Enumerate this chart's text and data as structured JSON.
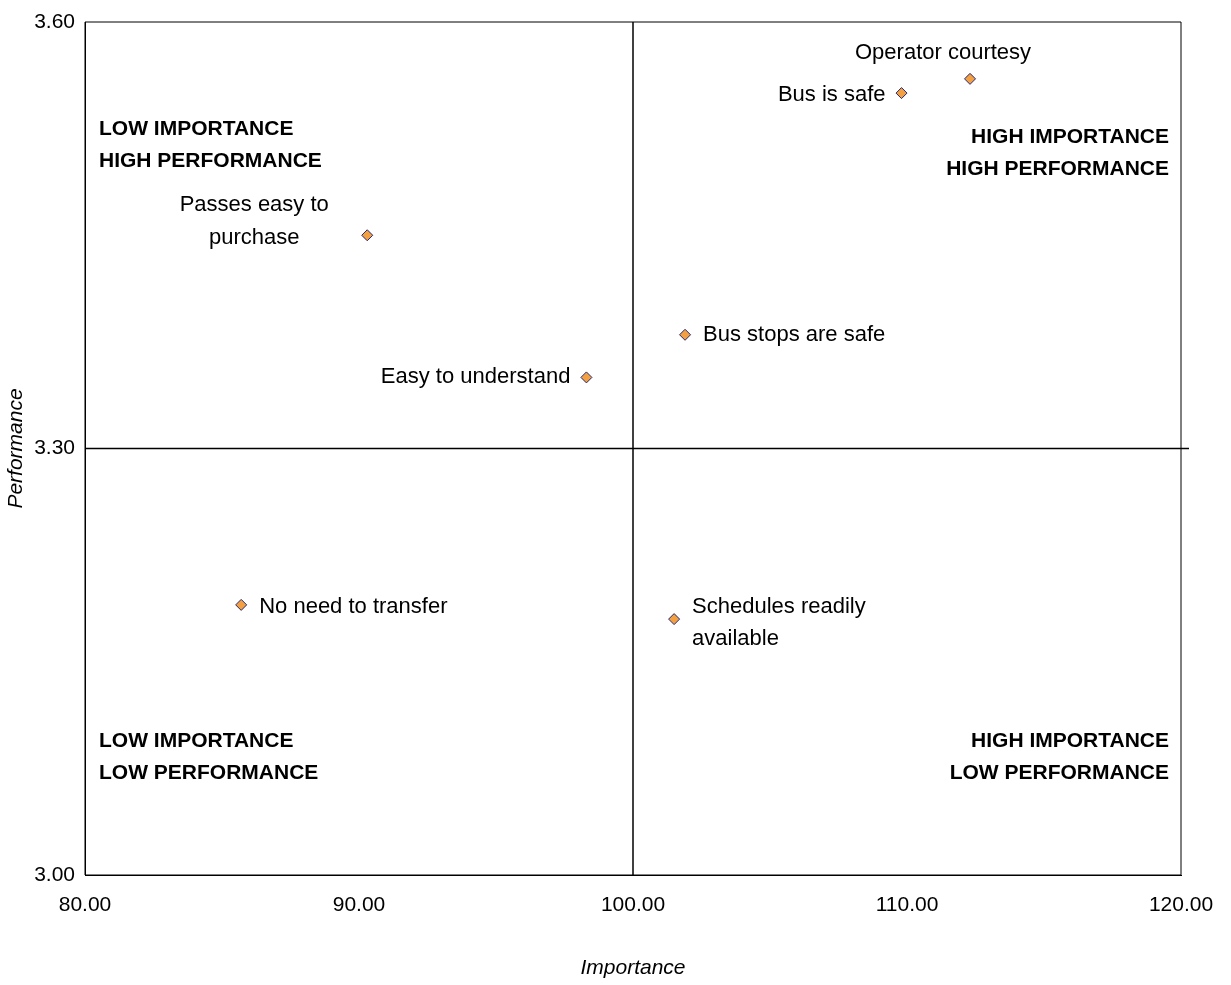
{
  "chart_data": {
    "type": "scatter",
    "xlabel": "Importance",
    "ylabel": "Performance",
    "x": [
      112.3,
      109.8,
      90.3,
      101.9,
      98.3,
      85.7,
      101.5
    ],
    "series": [
      {
        "color": "#f5a040",
        "values": [
          3.56,
          3.55,
          3.45,
          3.38,
          3.35,
          3.19,
          3.18
        ]
      }
    ],
    "xlim": [
      80,
      120
    ],
    "xticks": [
      {
        "value": 80,
        "label": "80.00"
      },
      {
        "value": 90,
        "label": "90.00"
      },
      {
        "value": 100,
        "label": "100.00"
      },
      {
        "value": 110,
        "label": "110.00"
      },
      {
        "value": 120,
        "label": "120.00"
      }
    ],
    "ylim": [
      3.0,
      3.6
    ],
    "yticks": [
      {
        "value": 3.0,
        "label": "3.00"
      },
      {
        "value": 3.3,
        "label": "3.30"
      },
      {
        "value": 3.6,
        "label": "3.60"
      }
    ],
    "ref_lines": [
      {
        "axis": "x",
        "value": 100,
        "color": "#000000"
      },
      {
        "axis": "y",
        "value": 3.3,
        "color": "#000000"
      }
    ],
    "marker": "diamond",
    "grid": false,
    "legend": false,
    "annotations": [
      {
        "text": "Operator courtesy",
        "x": 112.3,
        "y": 3.56
      },
      {
        "text": "Bus is safe",
        "x": 109.8,
        "y": 3.55
      },
      {
        "text": "Passes easy to\npurchase",
        "x": 90.3,
        "y": 3.45
      },
      {
        "text": "Bus stops are safe",
        "x": 101.9,
        "y": 3.38
      },
      {
        "text": "Easy to understand",
        "x": 98.3,
        "y": 3.35
      },
      {
        "text": "No need to transfer",
        "x": 85.7,
        "y": 3.19
      },
      {
        "text": "Schedules readily\navailable",
        "x": 101.5,
        "y": 3.18
      },
      "LOW IMPORTANCE\nHIGH PERFORMANCE",
      "HIGH IMPORTANCE\nHIGH PERFORMANCE",
      "LOW IMPORTANCE\nLOW PERFORMANCE",
      "HIGH IMPORTANCE\nLOW PERFORMANCE"
    ]
  }
}
